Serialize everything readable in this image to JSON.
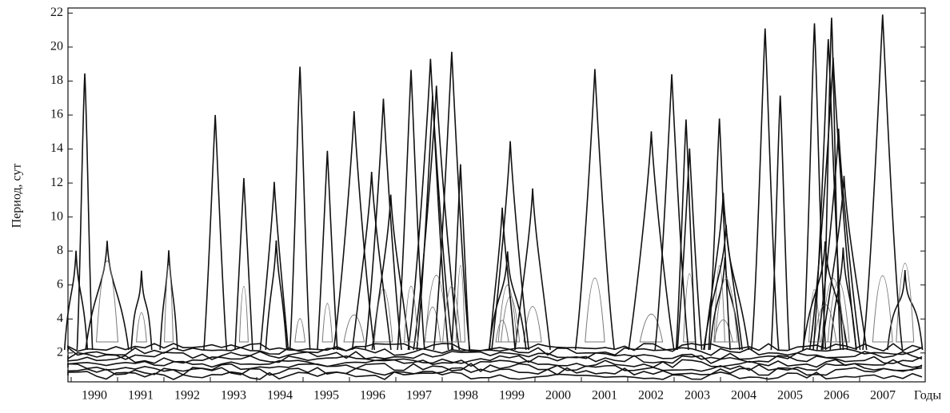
{
  "chart_data": {
    "type": "contour",
    "y_label": "Период, сут",
    "x_label": "Годы",
    "categories": [
      "1990",
      "1991",
      "1992",
      "1993",
      "1994",
      "1995",
      "1996",
      "1997",
      "1998",
      "1999",
      "2000",
      "2001",
      "2002",
      "2003",
      "2004",
      "2005",
      "2006",
      "2007"
    ],
    "ylim": [
      0.3,
      22.3
    ],
    "yticks": [
      2,
      4,
      6,
      8,
      10,
      12,
      14,
      16,
      18,
      20,
      22
    ]
  }
}
